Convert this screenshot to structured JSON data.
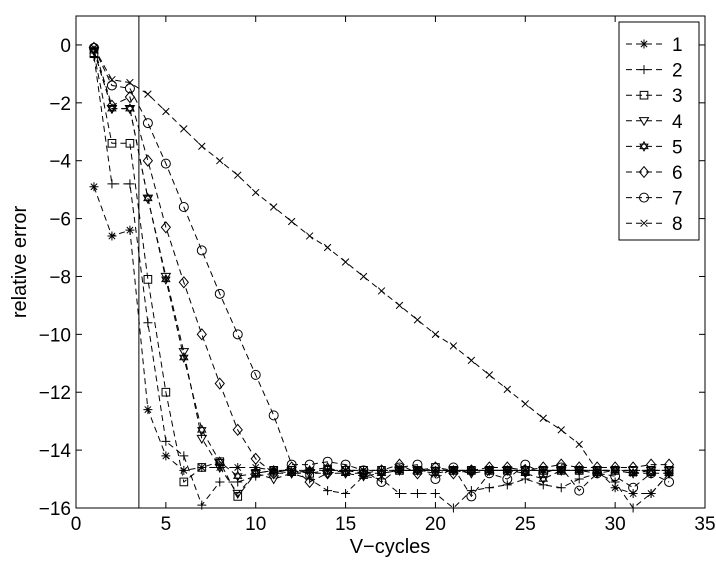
{
  "chart_data": {
    "type": "line",
    "title": "",
    "xlabel": "V−cycles",
    "ylabel": "relative error",
    "xlim": [
      0,
      35
    ],
    "ylim": [
      -16,
      1
    ],
    "xticks": [
      0,
      5,
      10,
      15,
      20,
      25,
      30,
      35
    ],
    "yticks": [
      0,
      -2,
      -4,
      -6,
      -8,
      -10,
      -12,
      -14,
      -16
    ],
    "ytick_labels": [
      "0",
      "−2",
      "−4",
      "−6",
      "−8",
      "−10",
      "−12",
      "−14",
      "−16"
    ],
    "grid": false,
    "legend_position": "top-right",
    "line_style": "dashed",
    "reference_line_x": 3.5,
    "x": [
      1,
      2,
      3,
      4,
      5,
      6,
      7,
      8,
      9,
      10,
      11,
      12,
      13,
      14,
      15,
      16,
      17,
      18,
      19,
      20,
      21,
      22,
      23,
      24,
      25,
      26,
      27,
      28,
      29,
      30,
      31,
      32,
      33
    ],
    "series": [
      {
        "name": "1",
        "marker": "asterisk",
        "values": [
          -4.9,
          -6.6,
          -6.4,
          -12.6,
          -14.2,
          -14.7,
          -14.6,
          -14.6,
          -14.6,
          -14.6,
          -14.7,
          -14.7,
          -14.7,
          -14.7,
          -14.7,
          -14.7,
          -14.7,
          -14.7,
          -14.7,
          -14.7,
          -14.7,
          -14.7,
          -14.7,
          -14.7,
          -14.7,
          -14.7,
          -14.7,
          -14.7,
          -14.7,
          -15.3,
          -15.5,
          -15.5,
          -14.8
        ]
      },
      {
        "name": "2",
        "marker": "plus",
        "values": [
          -0.4,
          -4.8,
          -4.8,
          -9.6,
          -13.7,
          -14.2,
          -15.9,
          -15.1,
          -15.1,
          -14.9,
          -14.8,
          -14.8,
          -15.0,
          -15.4,
          -15.5,
          -14.9,
          -15.0,
          -15.5,
          -15.5,
          -15.5,
          -16.0,
          -15.4,
          -15.3,
          -15.2,
          -15.0,
          -15.2,
          -15.3,
          -15.0,
          -14.8,
          -15.1,
          -16.0,
          -15.5,
          -14.8
        ]
      },
      {
        "name": "3",
        "marker": "square",
        "values": [
          -0.3,
          -3.4,
          -3.4,
          -8.1,
          -12.0,
          -15.1,
          -14.6,
          -14.4,
          -15.6,
          -14.8,
          -14.7,
          -14.7,
          -14.8,
          -14.7,
          -14.7,
          -14.7,
          -14.7,
          -14.7,
          -14.7,
          -14.6,
          -14.7,
          -14.7,
          -14.7,
          -14.7,
          -14.7,
          -14.7,
          -14.7,
          -14.7,
          -14.7,
          -14.7,
          -14.7,
          -14.7,
          -14.7
        ]
      },
      {
        "name": "4",
        "marker": "triangle-down",
        "values": [
          -0.2,
          -2.2,
          -2.2,
          -5.3,
          -8.0,
          -10.6,
          -13.6,
          -14.6,
          -15.5,
          -14.8,
          -15.0,
          -14.8,
          -14.8,
          -14.8,
          -14.8,
          -14.8,
          -14.8,
          -14.7,
          -14.7,
          -14.7,
          -14.7,
          -14.8,
          -14.7,
          -14.7,
          -14.7,
          -14.7,
          -14.7,
          -14.7,
          -14.7,
          -14.7,
          -14.7,
          -14.7,
          -14.7
        ]
      },
      {
        "name": "5",
        "marker": "hexagram",
        "values": [
          -0.2,
          -2.2,
          -2.2,
          -5.3,
          -8.1,
          -10.8,
          -13.3,
          -14.4,
          -14.9,
          -14.8,
          -14.7,
          -14.8,
          -14.7,
          -14.6,
          -14.8,
          -14.9,
          -14.8,
          -14.7,
          -14.7,
          -14.8,
          -14.7,
          -14.7,
          -14.7,
          -14.7,
          -14.8,
          -15.0,
          -14.7,
          -14.7,
          -14.8,
          -14.7,
          -14.8,
          -14.8,
          -14.8
        ]
      },
      {
        "name": "6",
        "marker": "diamond",
        "values": [
          -0.1,
          -2.1,
          -1.8,
          -4.0,
          -6.3,
          -8.2,
          -10.0,
          -11.7,
          -13.3,
          -14.3,
          -14.8,
          -14.6,
          -15.1,
          -14.8,
          -14.7,
          -14.8,
          -14.7,
          -14.5,
          -14.8,
          -14.6,
          -14.8,
          -14.7,
          -14.6,
          -14.6,
          -14.7,
          -14.6,
          -14.5,
          -14.6,
          -14.6,
          -14.6,
          -14.6,
          -14.5,
          -14.5
        ]
      },
      {
        "name": "7",
        "marker": "circle",
        "values": [
          -0.1,
          -1.4,
          -1.5,
          -2.7,
          -4.1,
          -5.6,
          -7.1,
          -8.6,
          -10.0,
          -11.4,
          -12.8,
          -14.5,
          -14.5,
          -14.4,
          -14.5,
          -14.7,
          -15.1,
          -14.6,
          -14.5,
          -15.0,
          -14.6,
          -15.6,
          -14.8,
          -15.0,
          -14.5,
          -14.8,
          -14.6,
          -15.4,
          -14.8,
          -14.9,
          -15.3,
          -14.8,
          -15.1
        ]
      },
      {
        "name": "8",
        "marker": "x",
        "values": [
          -0.1,
          -1.2,
          -1.3,
          -1.7,
          -2.3,
          -2.9,
          -3.5,
          -4.0,
          -4.5,
          -5.1,
          -5.6,
          -6.1,
          -6.6,
          -7.0,
          -7.5,
          -8.0,
          -8.5,
          -9.0,
          -9.5,
          -10.0,
          -10.4,
          -10.9,
          -11.4,
          -11.9,
          -12.4,
          -12.9,
          -13.3,
          -13.8,
          -14.7,
          -14.7,
          -14.8,
          -14.7,
          -14.7
        ]
      }
    ]
  }
}
